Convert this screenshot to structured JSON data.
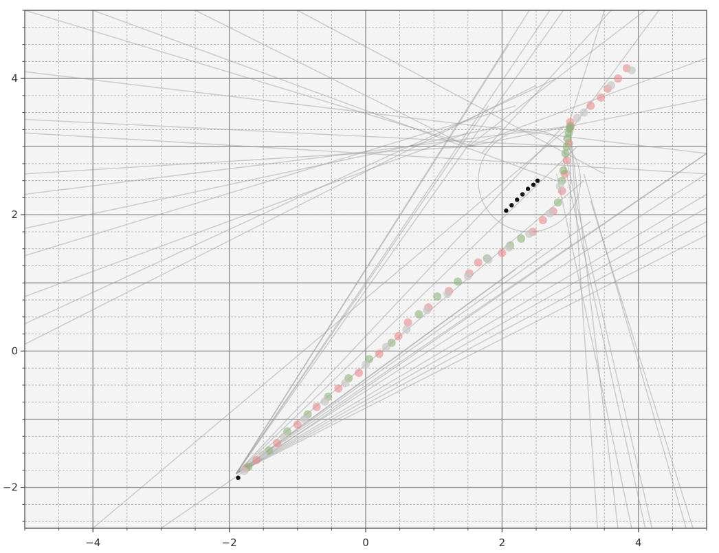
{
  "chart_data": {
    "type": "scatter",
    "title": "",
    "xlabel": "",
    "ylabel": "",
    "xlim": [
      -5,
      5
    ],
    "ylim": [
      -2.6,
      5
    ],
    "grid": true,
    "minor_grid": true,
    "x_ticks": [
      {
        "value": -4,
        "label": "−4"
      },
      {
        "value": -2,
        "label": "−2"
      },
      {
        "value": 0,
        "label": "0"
      },
      {
        "value": 2,
        "label": "2"
      },
      {
        "value": 4,
        "label": "4"
      }
    ],
    "y_ticks": [
      {
        "value": -2,
        "label": "−2"
      },
      {
        "value": 0,
        "label": "0"
      },
      {
        "value": 2,
        "label": "2"
      },
      {
        "value": 4,
        "label": "4"
      }
    ],
    "colors": {
      "background": "#f4f4f4",
      "major_grid": "#8a8a8a",
      "minor_grid": "#a8a8a8",
      "lines": "#9e9e9e",
      "red_points": "#e88a8a",
      "green_points": "#8db37a",
      "gray_points": "#c8c8c8",
      "black_points": "#111111"
    },
    "lines": [
      {
        "x1": -5,
        "y1": 4.1,
        "x2": 5,
        "y2": 2.9
      },
      {
        "x1": -5,
        "y1": 3.2,
        "x2": 5,
        "y2": 2.6
      },
      {
        "x1": -5,
        "y1": 3.4,
        "x2": 3.0,
        "y2": 3.0
      },
      {
        "x1": -5,
        "y1": 2.3,
        "x2": 3.0,
        "y2": 3.3
      },
      {
        "x1": -5,
        "y1": 1.8,
        "x2": 2.0,
        "y2": 3.3
      },
      {
        "x1": -5,
        "y1": 1.4,
        "x2": 2.2,
        "y2": 3.6
      },
      {
        "x1": -5,
        "y1": 0.1,
        "x2": 2.5,
        "y2": 3.9
      },
      {
        "x1": -5,
        "y1": 0.4,
        "x2": 2.8,
        "y2": 4.0
      },
      {
        "x1": -5,
        "y1": 0.8,
        "x2": 1.5,
        "y2": 3.2
      },
      {
        "x1": -5,
        "y1": 2.6,
        "x2": 1.5,
        "y2": 3.0
      },
      {
        "x1": -5,
        "y1": 5.0,
        "x2": 1.6,
        "y2": 3.0
      },
      {
        "x1": -2.5,
        "y1": 5.0,
        "x2": 1.5,
        "y2": 3.0
      },
      {
        "x1": -1.0,
        "y1": 5.0,
        "x2": 3.5,
        "y2": 2.6
      },
      {
        "x1": -4.0,
        "y1": 5.0,
        "x2": 2.8,
        "y2": 2.5
      },
      {
        "x1": 1.5,
        "y1": 3.0,
        "x2": 5,
        "y2": 4.3
      },
      {
        "x1": 1.5,
        "y1": 3.0,
        "x2": 5,
        "y2": 3.7
      },
      {
        "x1": 1.5,
        "y1": 3.0,
        "x2": 4.1,
        "y2": 5.0
      },
      {
        "x1": 1.7,
        "y1": 2.9,
        "x2": 3.6,
        "y2": 5.0
      },
      {
        "x1": -1.9,
        "y1": -1.8,
        "x2": 2.9,
        "y2": 5.0
      },
      {
        "x1": -1.9,
        "y1": -1.8,
        "x2": 2.7,
        "y2": 5.0
      },
      {
        "x1": -1.9,
        "y1": -1.8,
        "x2": 2.4,
        "y2": 5.0
      },
      {
        "x1": -1.9,
        "y1": -1.8,
        "x2": 2.1,
        "y2": 4.5
      },
      {
        "x1": -1.9,
        "y1": -1.8,
        "x2": 1.8,
        "y2": 3.6
      },
      {
        "x1": -1.9,
        "y1": -1.8,
        "x2": 2.9,
        "y2": 3.3
      },
      {
        "x1": -1.9,
        "y1": -1.8,
        "x2": 3.1,
        "y2": 3.0
      },
      {
        "x1": -1.9,
        "y1": -1.8,
        "x2": 3.2,
        "y2": 2.5
      },
      {
        "x1": -1.9,
        "y1": -1.8,
        "x2": 5,
        "y2": 2.9
      },
      {
        "x1": -1.9,
        "y1": -1.8,
        "x2": 5,
        "y2": 2.6
      },
      {
        "x1": -1.9,
        "y1": -1.8,
        "x2": 5,
        "y2": 2.3
      },
      {
        "x1": -1.9,
        "y1": -1.8,
        "x2": 5,
        "y2": 2.1
      },
      {
        "x1": -1.9,
        "y1": -1.8,
        "x2": 5,
        "y2": 1.9
      },
      {
        "x1": -1.9,
        "y1": -1.8,
        "x2": 5,
        "y2": 1.7
      },
      {
        "x1": -1.9,
        "y1": -1.8,
        "x2": 3.3,
        "y2": 1.9
      },
      {
        "x1": -1.9,
        "y1": -1.8,
        "x2": 2.6,
        "y2": 1.5
      },
      {
        "x1": -1.9,
        "y1": -1.8,
        "x2": 2.2,
        "y2": 1.2
      },
      {
        "x1": -3.0,
        "y1": -2.6,
        "x2": 5,
        "y2": 2.9
      },
      {
        "x1": -4.0,
        "y1": -2.6,
        "x2": 3.0,
        "y2": 3.3
      },
      {
        "x1": 3.0,
        "y1": 3.4,
        "x2": 3.0,
        "y2": -2.6
      },
      {
        "x1": 3.0,
        "y1": 3.3,
        "x2": 3.4,
        "y2": -2.6
      },
      {
        "x1": 3.0,
        "y1": 3.2,
        "x2": 3.7,
        "y2": -2.6
      },
      {
        "x1": 2.9,
        "y1": 3.0,
        "x2": 4.2,
        "y2": -2.6
      },
      {
        "x1": 2.9,
        "y1": 2.8,
        "x2": 4.1,
        "y2": -2.6
      },
      {
        "x1": 2.8,
        "y1": 2.6,
        "x2": 3.9,
        "y2": -2.6
      },
      {
        "x1": 3.0,
        "y1": 3.4,
        "x2": 3.5,
        "y2": 5.0
      },
      {
        "x1": 2.9,
        "y1": 3.1,
        "x2": 4.3,
        "y2": 5.0
      },
      {
        "x1": 3.3,
        "y1": 2.2,
        "x2": 4.8,
        "y2": -2.6
      },
      {
        "x1": 3.2,
        "y1": 2.6,
        "x2": 4.7,
        "y2": -2.6
      }
    ],
    "circle_hint": {
      "cx": 2.4,
      "cy": 2.5,
      "r": 0.75
    },
    "series": [
      {
        "points": [
          [
            -1.75,
            -1.72
          ],
          [
            -1.6,
            -1.6
          ],
          [
            -1.3,
            -1.35
          ],
          [
            -1.0,
            -1.08
          ],
          [
            -0.72,
            -0.82
          ],
          [
            -0.4,
            -0.55
          ],
          [
            -0.1,
            -0.32
          ],
          [
            0.2,
            -0.04
          ],
          [
            0.48,
            0.22
          ],
          [
            0.62,
            0.42
          ],
          [
            0.92,
            0.64
          ],
          [
            1.22,
            0.88
          ],
          [
            1.52,
            1.14
          ],
          [
            1.65,
            1.3
          ],
          [
            2.0,
            1.44
          ],
          [
            2.45,
            1.75
          ],
          [
            2.6,
            1.92
          ],
          [
            2.75,
            2.05
          ],
          [
            2.88,
            2.35
          ],
          [
            2.92,
            2.6
          ],
          [
            2.95,
            2.8
          ],
          [
            2.98,
            3.05
          ],
          [
            3.0,
            3.28
          ],
          [
            3.0,
            3.36
          ],
          [
            3.3,
            3.6
          ],
          [
            3.45,
            3.72
          ],
          [
            3.55,
            3.85
          ],
          [
            3.7,
            4.0
          ],
          [
            3.83,
            4.15
          ]
        ]
      },
      {
        "points": [
          [
            -1.72,
            -1.7
          ],
          [
            -1.42,
            -1.46
          ],
          [
            -1.15,
            -1.18
          ],
          [
            -0.85,
            -0.93
          ],
          [
            -0.55,
            -0.67
          ],
          [
            -0.25,
            -0.4
          ],
          [
            0.05,
            -0.12
          ],
          [
            0.38,
            0.12
          ],
          [
            0.78,
            0.54
          ],
          [
            1.05,
            0.8
          ],
          [
            1.35,
            1.02
          ],
          [
            1.78,
            1.36
          ],
          [
            2.12,
            1.55
          ],
          [
            2.28,
            1.65
          ],
          [
            2.82,
            2.18
          ],
          [
            2.88,
            2.5
          ],
          [
            2.9,
            2.65
          ],
          [
            2.93,
            2.9
          ],
          [
            2.95,
            3.0
          ],
          [
            2.96,
            3.12
          ],
          [
            2.98,
            3.2
          ],
          [
            2.99,
            3.26
          ],
          [
            3.0,
            3.3
          ]
        ]
      },
      {
        "points": [
          [
            -1.78,
            -1.76
          ],
          [
            -1.5,
            -1.52
          ],
          [
            -1.2,
            -1.26
          ],
          [
            -0.9,
            -1.0
          ],
          [
            -0.6,
            -0.74
          ],
          [
            -0.3,
            -0.47
          ],
          [
            0.0,
            -0.2
          ],
          [
            0.3,
            0.06
          ],
          [
            0.6,
            0.32
          ],
          [
            0.9,
            0.6
          ],
          [
            1.2,
            0.84
          ],
          [
            1.5,
            1.1
          ],
          [
            1.8,
            1.34
          ],
          [
            2.1,
            1.52
          ],
          [
            2.4,
            1.72
          ],
          [
            2.7,
            2.02
          ],
          [
            2.85,
            2.42
          ],
          [
            3.1,
            3.42
          ],
          [
            3.2,
            3.5
          ],
          [
            3.6,
            3.9
          ],
          [
            3.9,
            4.12
          ]
        ]
      },
      {
        "points": [
          [
            -1.87,
            -1.86
          ],
          [
            2.06,
            2.06
          ],
          [
            2.14,
            2.14
          ],
          [
            2.22,
            2.22
          ],
          [
            2.3,
            2.3
          ],
          [
            2.38,
            2.38
          ],
          [
            2.46,
            2.44
          ],
          [
            2.52,
            2.5
          ]
        ]
      }
    ]
  }
}
